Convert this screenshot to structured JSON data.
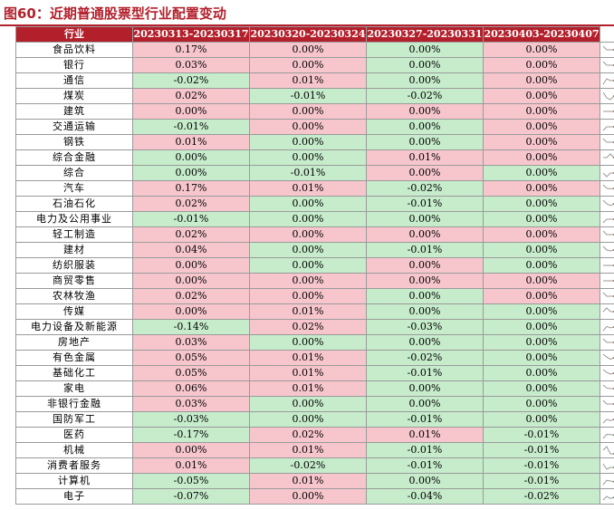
{
  "figure": {
    "title": "图60：近期普通股票型行业配置变动"
  },
  "table": {
    "headers": [
      "行业",
      "20230313-20230317",
      "20230320-20230324",
      "20230327-20230331",
      "20230403-20230407"
    ],
    "rows": [
      {
        "industry": "食品饮料",
        "values": [
          "0.17%",
          "0.00%",
          "0.00%",
          "0.00%"
        ],
        "signs": [
          "pos",
          "pos",
          "neg",
          "pos"
        ]
      },
      {
        "industry": "银行",
        "values": [
          "0.03%",
          "0.00%",
          "0.00%",
          "0.00%"
        ],
        "signs": [
          "pos",
          "pos",
          "neg",
          "pos"
        ]
      },
      {
        "industry": "通信",
        "values": [
          "-0.02%",
          "0.01%",
          "0.00%",
          "0.00%"
        ],
        "signs": [
          "neg",
          "pos",
          "neg",
          "pos"
        ]
      },
      {
        "industry": "煤炭",
        "values": [
          "0.02%",
          "-0.01%",
          "-0.02%",
          "0.00%"
        ],
        "signs": [
          "pos",
          "neg",
          "neg",
          "pos"
        ]
      },
      {
        "industry": "建筑",
        "values": [
          "0.00%",
          "0.00%",
          "0.00%",
          "0.00%"
        ],
        "signs": [
          "pos",
          "pos",
          "pos",
          "pos"
        ]
      },
      {
        "industry": "交通运输",
        "values": [
          "-0.01%",
          "0.00%",
          "0.00%",
          "0.00%"
        ],
        "signs": [
          "neg",
          "pos",
          "neg",
          "pos"
        ]
      },
      {
        "industry": "钢铁",
        "values": [
          "0.01%",
          "0.00%",
          "0.00%",
          "0.00%"
        ],
        "signs": [
          "pos",
          "neg",
          "neg",
          "pos"
        ]
      },
      {
        "industry": "综合金融",
        "values": [
          "0.00%",
          "0.00%",
          "0.01%",
          "0.00%"
        ],
        "signs": [
          "neg",
          "neg",
          "pos",
          "pos"
        ]
      },
      {
        "industry": "综合",
        "values": [
          "0.00%",
          "-0.01%",
          "0.00%",
          "0.00%"
        ],
        "signs": [
          "neg",
          "neg",
          "pos",
          "neg"
        ]
      },
      {
        "industry": "汽车",
        "values": [
          "0.17%",
          "0.01%",
          "-0.02%",
          "0.00%"
        ],
        "signs": [
          "pos",
          "pos",
          "neg",
          "pos"
        ]
      },
      {
        "industry": "石油石化",
        "values": [
          "0.02%",
          "0.00%",
          "-0.01%",
          "0.00%"
        ],
        "signs": [
          "pos",
          "neg",
          "neg",
          "neg"
        ]
      },
      {
        "industry": "电力及公用事业",
        "values": [
          "-0.01%",
          "0.00%",
          "0.00%",
          "0.00%"
        ],
        "signs": [
          "neg",
          "neg",
          "neg",
          "neg"
        ]
      },
      {
        "industry": "轻工制造",
        "values": [
          "0.02%",
          "0.00%",
          "0.00%",
          "0.00%"
        ],
        "signs": [
          "pos",
          "pos",
          "pos",
          "pos"
        ]
      },
      {
        "industry": "建材",
        "values": [
          "0.04%",
          "0.00%",
          "-0.01%",
          "0.00%"
        ],
        "signs": [
          "pos",
          "neg",
          "neg",
          "neg"
        ]
      },
      {
        "industry": "纺织服装",
        "values": [
          "0.00%",
          "0.00%",
          "0.00%",
          "0.00%"
        ],
        "signs": [
          "pos",
          "neg",
          "pos",
          "neg"
        ]
      },
      {
        "industry": "商贸零售",
        "values": [
          "0.00%",
          "0.00%",
          "0.00%",
          "0.00%"
        ],
        "signs": [
          "pos",
          "pos",
          "pos",
          "pos"
        ]
      },
      {
        "industry": "农林牧渔",
        "values": [
          "0.02%",
          "0.00%",
          "0.00%",
          "0.00%"
        ],
        "signs": [
          "pos",
          "pos",
          "neg",
          "pos"
        ]
      },
      {
        "industry": "传媒",
        "values": [
          "0.00%",
          "0.01%",
          "0.00%",
          "0.00%"
        ],
        "signs": [
          "pos",
          "pos",
          "neg",
          "neg"
        ]
      },
      {
        "industry": "电力设备及新能源",
        "values": [
          "-0.14%",
          "0.02%",
          "-0.03%",
          "0.00%"
        ],
        "signs": [
          "neg",
          "pos",
          "neg",
          "neg"
        ]
      },
      {
        "industry": "房地产",
        "values": [
          "0.03%",
          "0.00%",
          "0.00%",
          "0.00%"
        ],
        "signs": [
          "pos",
          "neg",
          "neg",
          "neg"
        ]
      },
      {
        "industry": "有色金属",
        "values": [
          "0.05%",
          "0.01%",
          "-0.02%",
          "0.00%"
        ],
        "signs": [
          "pos",
          "pos",
          "neg",
          "neg"
        ]
      },
      {
        "industry": "基础化工",
        "values": [
          "0.05%",
          "0.01%",
          "-0.01%",
          "0.00%"
        ],
        "signs": [
          "pos",
          "pos",
          "neg",
          "neg"
        ]
      },
      {
        "industry": "家电",
        "values": [
          "0.06%",
          "0.01%",
          "0.00%",
          "0.00%"
        ],
        "signs": [
          "pos",
          "pos",
          "neg",
          "neg"
        ]
      },
      {
        "industry": "非银行金融",
        "values": [
          "0.03%",
          "0.00%",
          "0.00%",
          "0.00%"
        ],
        "signs": [
          "pos",
          "neg",
          "neg",
          "neg"
        ]
      },
      {
        "industry": "国防军工",
        "values": [
          "-0.03%",
          "0.00%",
          "-0.01%",
          "0.00%"
        ],
        "signs": [
          "neg",
          "neg",
          "neg",
          "neg"
        ]
      },
      {
        "industry": "医药",
        "values": [
          "-0.17%",
          "0.02%",
          "0.01%",
          "-0.01%"
        ],
        "signs": [
          "neg",
          "pos",
          "pos",
          "neg"
        ]
      },
      {
        "industry": "机械",
        "values": [
          "0.00%",
          "0.01%",
          "-0.01%",
          "-0.01%"
        ],
        "signs": [
          "pos",
          "pos",
          "neg",
          "neg"
        ]
      },
      {
        "industry": "消费者服务",
        "values": [
          "0.01%",
          "-0.02%",
          "-0.01%",
          "-0.01%"
        ],
        "signs": [
          "pos",
          "neg",
          "neg",
          "neg"
        ]
      },
      {
        "industry": "计算机",
        "values": [
          "-0.05%",
          "0.01%",
          "0.00%",
          "-0.01%"
        ],
        "signs": [
          "neg",
          "pos",
          "neg",
          "neg"
        ]
      },
      {
        "industry": "电子",
        "values": [
          "-0.07%",
          "0.00%",
          "-0.04%",
          "-0.02%"
        ],
        "signs": [
          "neg",
          "pos",
          "neg",
          "neg"
        ]
      }
    ]
  },
  "colors": {
    "header_bg": "#b3202b",
    "positive_cell": "#f7c6cd",
    "negative_cell": "#c6eccb",
    "spark_line": "#9a9a9a",
    "spark_dot_red": "#e0303a",
    "spark_dot_green": "#2aa04a"
  },
  "icons": {
    "sparkline": "sparkline-icon"
  }
}
